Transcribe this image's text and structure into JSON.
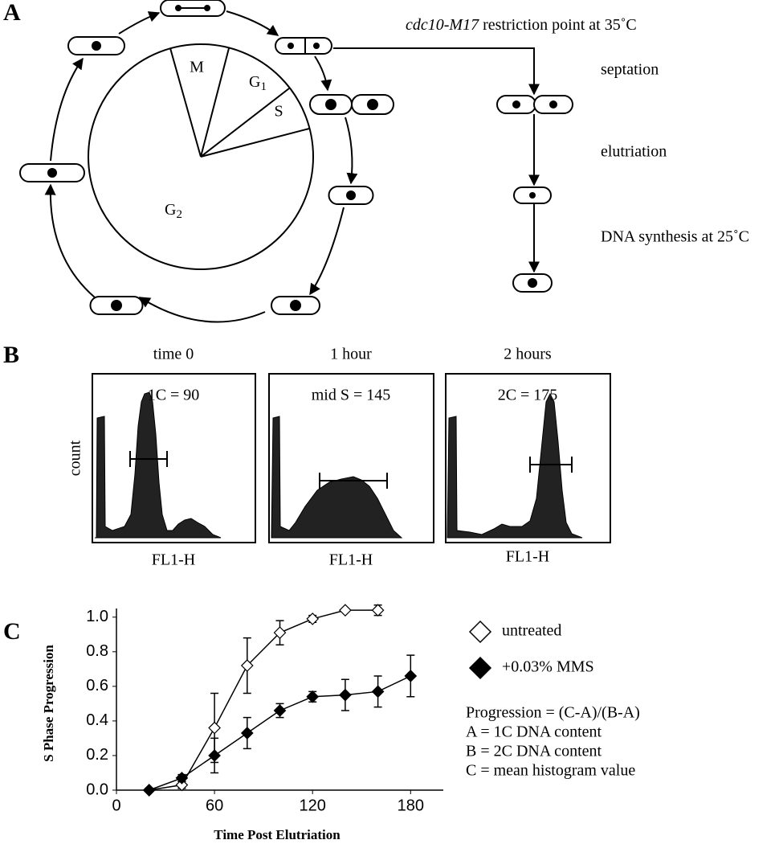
{
  "figure": {
    "panel_labels": [
      "A",
      "B",
      "C"
    ]
  },
  "diagram": {
    "phases": [
      {
        "name": "M"
      },
      {
        "name": "G",
        "sub": "1"
      },
      {
        "name": "S"
      },
      {
        "name": "G",
        "sub": "2"
      }
    ],
    "restriction_point": {
      "gene": "cdc10-M17",
      "text": " restriction point at 35˚C"
    },
    "steps": [
      "septation",
      "elutriation",
      "DNA synthesis at 25˚C"
    ]
  },
  "histograms": {
    "y_label": "count",
    "panels": [
      {
        "title": "time 0",
        "stat": "1C = 90",
        "x_label": "FL1-H"
      },
      {
        "title": "1 hour",
        "stat": "mid S = 145",
        "x_label": "FL1-H"
      },
      {
        "title": "2 hours",
        "stat": "2C = 175",
        "x_label": "FL1-H"
      }
    ]
  },
  "chart_data": {
    "type": "line",
    "x_label": "Time Post Elutriation",
    "y_label": "S Phase Progression",
    "xlim": [
      0,
      200
    ],
    "xticks": [
      0,
      60,
      120,
      180
    ],
    "ylim": [
      0,
      1.05
    ],
    "yticks": [
      {
        "value": 0,
        "label": "0.0"
      },
      0.2,
      0.4,
      0.6,
      0.8,
      {
        "value": 1,
        "label": "1.0"
      }
    ],
    "series": [
      {
        "name": "untreated",
        "color": "#ffffff",
        "x": [
          20,
          40,
          60,
          80,
          100,
          120,
          140,
          160
        ],
        "values": [
          0,
          0.03,
          0.36,
          0.72,
          0.91,
          0.99,
          1.04,
          1.04
        ],
        "errors": [
          0,
          0.02,
          0.2,
          0.16,
          0.07,
          0.02,
          0,
          0.03
        ]
      },
      {
        "name": "+0.03% MMS",
        "color": "#000000",
        "x": [
          20,
          40,
          60,
          80,
          100,
          120,
          140,
          160,
          180
        ],
        "values": [
          0,
          0.07,
          0.2,
          0.33,
          0.46,
          0.54,
          0.55,
          0.57,
          0.66
        ],
        "errors": [
          0,
          0.02,
          0.1,
          0.09,
          0.04,
          0.03,
          0.09,
          0.09,
          0.12
        ]
      }
    ],
    "annotations": [
      "Progression = (C-A)/(B-A)",
      "A = 1C DNA content",
      "B = 2C DNA content",
      "C = mean histogram value"
    ]
  }
}
